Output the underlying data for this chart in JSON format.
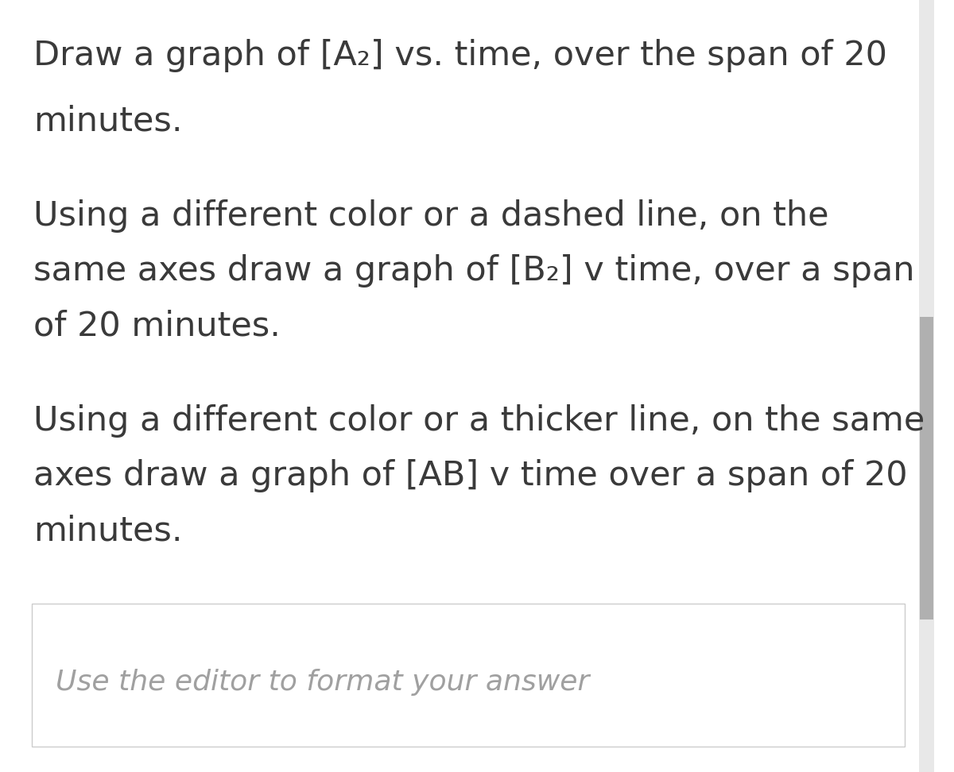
{
  "background_color": "#ffffff",
  "text_color": "#3a3a3a",
  "scrollbar_track_color": "#e8e8e8",
  "scrollbar_thumb_color": "#b0b0b0",
  "paragraph1_line1": "Draw a graph of [A₂] vs. time, over the span of 20",
  "paragraph1_line2": "minutes.",
  "paragraph2_line1": "Using a different color or a dashed line, on the",
  "paragraph2_line2": "same axes draw a graph of [B₂] v time, over a span",
  "paragraph2_line3": "of 20 minutes.",
  "paragraph3_line1": "Using a different color or a thicker line, on the same",
  "paragraph3_line2": "axes draw a graph of [AB] v time over a span of 20",
  "paragraph3_line3": "minutes.",
  "editor_placeholder": "Use the editor to format your answer",
  "font_size_main": 31,
  "font_size_placeholder": 26,
  "figwidth": 12.0,
  "figheight": 9.72
}
